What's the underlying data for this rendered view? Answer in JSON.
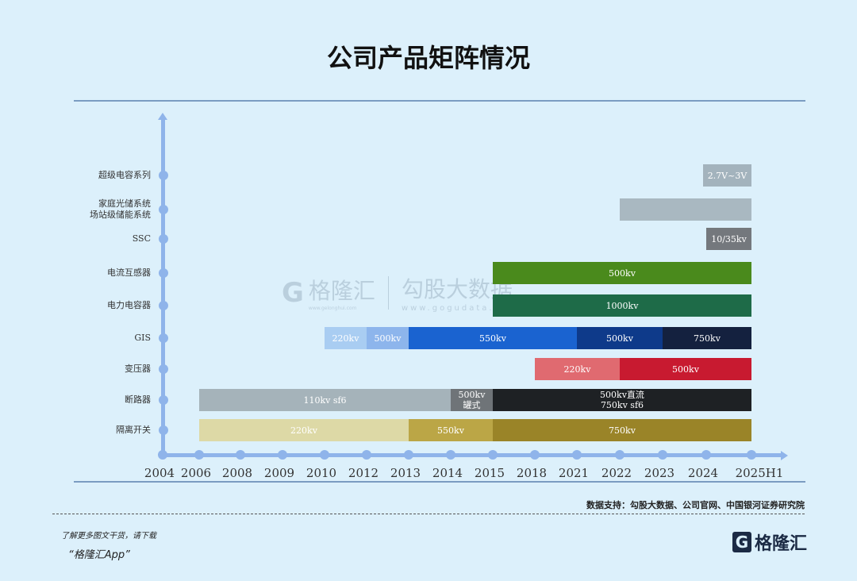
{
  "chart_data": {
    "type": "gantt",
    "title": "公司产品矩阵情况",
    "categories": [
      "2004",
      "2006",
      "2008",
      "2009",
      "2010",
      "2012",
      "2013",
      "2014",
      "2015",
      "2018",
      "2021",
      "2022",
      "2023",
      "2024",
      "2025H1"
    ],
    "rows": [
      {
        "label": "超级电容系列",
        "segments": [
          {
            "start": "2024",
            "end": "2025H1",
            "text": "2.7V~3V",
            "color": "#a3b3bd"
          }
        ]
      },
      {
        "label": "家庭光储系统\n场站级储能系统",
        "segments": [
          {
            "start": "2022",
            "end": "2025H1",
            "text": "",
            "color": "#a9b8c1"
          }
        ]
      },
      {
        "label": "SSC",
        "segments": [
          {
            "start": "2024",
            "end": "2025H1",
            "text": "10/35kv",
            "color": "#74787d"
          }
        ]
      },
      {
        "label": "电流互感器",
        "segments": [
          {
            "start": "2015",
            "end": "2025H1",
            "text": "500kv",
            "color": "#4a8a1c"
          }
        ]
      },
      {
        "label": "电力电容器",
        "segments": [
          {
            "start": "2015",
            "end": "2025H1",
            "text": "1000kv",
            "color": "#1e6b48"
          }
        ]
      },
      {
        "label": "GIS",
        "segments": [
          {
            "start": "2010",
            "end": "2012",
            "text": "220kv",
            "color": "#a9cdf2"
          },
          {
            "start": "2012",
            "end": "2013",
            "text": "500kv",
            "color": "#8db5ec"
          },
          {
            "start": "2013",
            "end": "2021",
            "text": "550kv",
            "color": "#1a63d0"
          },
          {
            "start": "2021",
            "end": "2023",
            "text": "500kv",
            "color": "#0e3a8a"
          },
          {
            "start": "2023",
            "end": "2025H1",
            "text": "750kv",
            "color": "#14213f"
          }
        ]
      },
      {
        "label": "变压器",
        "segments": [
          {
            "start": "2018",
            "end": "2022",
            "text": "220kv",
            "color": "#e06a70"
          },
          {
            "start": "2022",
            "end": "2025H1",
            "text": "500kv",
            "color": "#c81a30"
          }
        ]
      },
      {
        "label": "断路器",
        "segments": [
          {
            "start": "2006",
            "end": "2014",
            "text": "110kv sf6",
            "color": "#a5b3ba"
          },
          {
            "start": "2014",
            "end": "2015",
            "text": "500kv\n罐式",
            "color": "#6f7478"
          },
          {
            "start": "2015",
            "end": "2025H1",
            "text": "500kv直流\n750kv sf6",
            "color": "#1e2124"
          }
        ]
      },
      {
        "label": "隔离开关",
        "segments": [
          {
            "start": "2006",
            "end": "2013",
            "text": "220kv",
            "color": "#ddd9a6"
          },
          {
            "start": "2013",
            "end": "2015",
            "text": "550kv",
            "color": "#bba646"
          },
          {
            "start": "2015",
            "end": "2025H1",
            "text": "750kv",
            "color": "#9a8428"
          }
        ]
      }
    ],
    "xlabel": "",
    "ylabel": ""
  },
  "watermark": {
    "brand": "格隆汇",
    "brand_url": "www.gelonghui.com",
    "partner": "勾股大数据",
    "partner_url": "www.gogudata.com"
  },
  "footer": {
    "source": "数据支持：勾股大数据、公司官网、中国银河证券研究院",
    "promo_line1": "了解更多图文干货，请下载",
    "promo_line2": "“格隆汇App”",
    "logo_text": "格隆汇"
  }
}
